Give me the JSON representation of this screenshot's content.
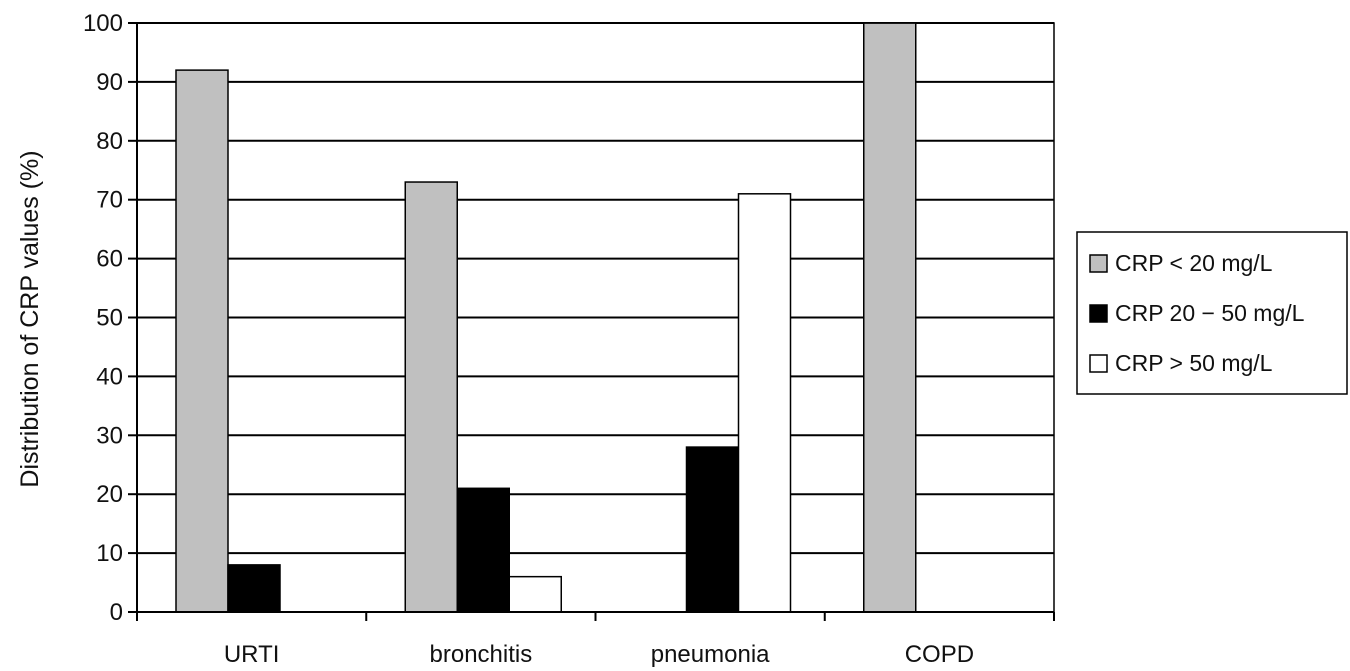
{
  "chart_data": {
    "type": "bar",
    "title": "",
    "xlabel": "",
    "ylabel": "Distribution of CRP values (%)",
    "ylim": [
      0,
      100
    ],
    "yticks": [
      0,
      10,
      20,
      30,
      40,
      50,
      60,
      70,
      80,
      90,
      100
    ],
    "grid": true,
    "legend_position": "right",
    "categories": [
      "URTI",
      "bronchitis",
      "pneumonia",
      "COPD"
    ],
    "series": [
      {
        "name": "CRP < 20 mg/L",
        "color": "#c0c0c0",
        "values": [
          92,
          73,
          0,
          100
        ]
      },
      {
        "name": "CRP 20 − 50 mg/L",
        "color": "#000000",
        "values": [
          8,
          21,
          28,
          0
        ]
      },
      {
        "name": "CRP > 50 mg/L",
        "color": "#ffffff",
        "values": [
          0,
          6,
          71,
          0
        ]
      }
    ]
  }
}
